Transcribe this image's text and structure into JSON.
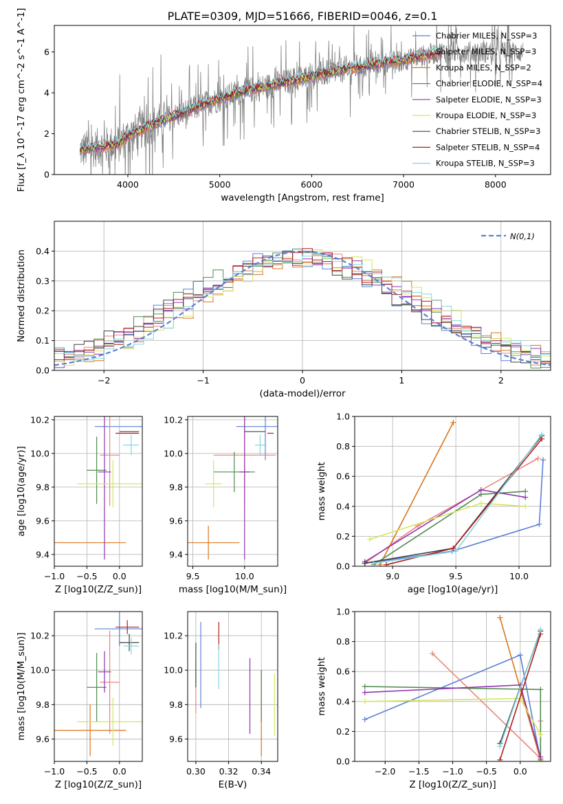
{
  "figure": {
    "title": "PLATE=0309, MJD=51666, FIBERID=0046, z=0.1"
  },
  "chart_data": [
    {
      "id": "spectrum",
      "type": "line",
      "title": "PLATE=0309, MJD=51666, FIBERID=0046, z=0.1",
      "xlabel": "wavelength [Angstrom, rest frame]",
      "ylabel": "Flux [f_λ 10^-17 erg cm^-2 s^-1 A^-1]",
      "xlim": [
        3200,
        8600
      ],
      "ylim": [
        0,
        7.3
      ],
      "xticks": [
        4000,
        5000,
        6000,
        7000,
        8000
      ],
      "yticks": [
        0,
        2,
        4,
        6
      ],
      "grid": false,
      "legend_position": "top-right",
      "legend": [
        {
          "label": "Chabrier MILES, N_SSP=3",
          "color": "#5a7fd6"
        },
        {
          "label": "Salpeter MILES, N_SSP=3",
          "color": "#e8837a"
        },
        {
          "label": "Kroupa MILES, N_SSP=2",
          "color": "#d9731c"
        },
        {
          "label": "Chabrier ELODIE, N_SSP=4",
          "color": "#4f8a4f"
        },
        {
          "label": "Salpeter ELODIE, N_SSP=3",
          "color": "#8e33b0"
        },
        {
          "label": "Kroupa ELODIE, N_SSP=3",
          "color": "#d5e65a"
        },
        {
          "label": "Chabrier STELIB, N_SSP=3",
          "color": "#404040"
        },
        {
          "label": "Salpeter STELIB, N_SSP=4",
          "color": "#b01c1c"
        },
        {
          "label": "Kroupa STELIB, N_SSP=3",
          "color": "#83d5dc"
        }
      ],
      "data_color": "#808080",
      "model_anchor_points": {
        "x": [
          3500,
          3700,
          3900,
          4000,
          4200,
          4400,
          4600,
          4800,
          5000,
          5200,
          5400,
          5600,
          5800,
          6000,
          6200,
          6400,
          6600,
          6800,
          7000,
          7200,
          7400
        ],
        "y": [
          1.2,
          1.35,
          1.5,
          1.9,
          2.3,
          2.7,
          3.0,
          3.4,
          3.7,
          4.0,
          4.2,
          4.4,
          4.6,
          4.8,
          5.0,
          5.2,
          5.3,
          5.5,
          5.6,
          5.8,
          6.0
        ]
      }
    },
    {
      "id": "residuals",
      "type": "step",
      "xlabel": "(data-model)/error",
      "ylabel": "Normed distribution",
      "xlim": [
        -2.5,
        2.5
      ],
      "ylim": [
        0,
        0.5
      ],
      "xticks": [
        -2,
        -1,
        0,
        1,
        2
      ],
      "yticks": [
        0.0,
        0.1,
        0.2,
        0.3,
        0.4
      ],
      "grid": true,
      "legend_position": "top-right",
      "legend": [
        {
          "label": "N(0,1)",
          "color": "#5a7fd6",
          "style": "dashed"
        }
      ],
      "bin_width": 0.1,
      "series_colors": [
        "#5a7fd6",
        "#e8837a",
        "#d9731c",
        "#4f8a4f",
        "#8e33b0",
        "#d5e65a",
        "#404040",
        "#b01c1c",
        "#83d5dc"
      ]
    },
    {
      "id": "age-vs-Z",
      "type": "errorbar",
      "xlabel": "Z [log10(Z/Z_sun)]",
      "ylabel": "age [log10(age/yr)]",
      "xlim": [
        -1.0,
        0.35
      ],
      "ylim": [
        9.33,
        10.22
      ],
      "xticks": [
        -1.0,
        -0.5,
        0.0
      ],
      "yticks": [
        9.4,
        9.6,
        9.8,
        10.0,
        10.2
      ],
      "grid": true,
      "points": [
        {
          "x": 0.0,
          "xerr": 0.38,
          "y": 10.16,
          "yerr": 0.0,
          "color": "#5a7fd6"
        },
        {
          "x": -0.15,
          "xerr": 0.15,
          "y": 9.99,
          "yerr": 0.3,
          "color": "#e8837a"
        },
        {
          "x": -0.45,
          "xerr": 0.55,
          "y": 9.47,
          "yerr": 0.0,
          "color": "#d9731c"
        },
        {
          "x": -0.35,
          "xerr": 0.15,
          "y": 9.9,
          "yerr": 0.2,
          "color": "#4f8a4f"
        },
        {
          "x": -0.23,
          "xerr": 0.1,
          "y": 9.89,
          "yerr": 0.52,
          "color": "#8e33b0"
        },
        {
          "x": -0.1,
          "xerr": 0.55,
          "y": 9.82,
          "yerr": 0.14,
          "color": "#d5e65a"
        },
        {
          "x": 0.15,
          "xerr": 0.15,
          "y": 10.13,
          "yerr": 0.0,
          "color": "#404040"
        },
        {
          "x": 0.12,
          "xerr": 0.18,
          "y": 10.12,
          "yerr": 0.0,
          "color": "#b01c1c"
        },
        {
          "x": 0.18,
          "xerr": 0.12,
          "y": 10.05,
          "yerr": 0.06,
          "color": "#83d5dc"
        }
      ]
    },
    {
      "id": "age-vs-mass",
      "type": "errorbar",
      "xlabel": "mass [log10(M/M_sun)]",
      "ylabel": "",
      "xlim": [
        9.45,
        10.32
      ],
      "ylim": [
        9.33,
        10.22
      ],
      "xticks": [
        9.5,
        10.0
      ],
      "yticks": [
        9.4,
        9.6,
        9.8,
        10.0,
        10.2
      ],
      "grid": true,
      "points": [
        {
          "x": 10.2,
          "xerr": 0.28,
          "y": 10.16,
          "yerr": 0.2,
          "color": "#5a7fd6"
        },
        {
          "x": 10.0,
          "xerr": 0.3,
          "y": 9.99,
          "yerr": 0.3,
          "color": "#e8837a"
        },
        {
          "x": 9.65,
          "xerr": 0.3,
          "y": 9.47,
          "yerr": 0.1,
          "color": "#d9731c"
        },
        {
          "x": 9.9,
          "xerr": 0.2,
          "y": 9.89,
          "yerr": 0.12,
          "color": "#4f8a4f"
        },
        {
          "x": 10.0,
          "xerr": 0.05,
          "y": 9.89,
          "yerr": 0.52,
          "color": "#8e33b0"
        },
        {
          "x": 9.7,
          "xerr": 0.08,
          "y": 9.82,
          "yerr": 0.14,
          "color": "#d5e65a"
        },
        {
          "x": 10.1,
          "xerr": 0.1,
          "y": 10.13,
          "yerr": 0.0,
          "color": "#404040"
        },
        {
          "x": 10.25,
          "xerr": 0.03,
          "y": 10.12,
          "yerr": 0.0,
          "color": "#b01c1c"
        },
        {
          "x": 10.15,
          "xerr": 0.05,
          "y": 10.05,
          "yerr": 0.06,
          "color": "#83d5dc"
        }
      ]
    },
    {
      "id": "mass-weight-vs-age",
      "type": "line",
      "xlabel": "age [log10(age/yr)]",
      "ylabel": "mass weight",
      "xlim": [
        8.7,
        10.25
      ],
      "ylim": [
        0,
        1.0
      ],
      "xticks": [
        9.0,
        9.5,
        10.0
      ],
      "yticks": [
        0.0,
        0.2,
        0.4,
        0.6,
        0.8,
        1.0
      ],
      "grid": true,
      "series": [
        {
          "color": "#5a7fd6",
          "x": [
            8.78,
            9.47,
            10.16,
            10.19
          ],
          "y": [
            0.02,
            0.1,
            0.28,
            0.71
          ]
        },
        {
          "color": "#e8837a",
          "x": [
            8.78,
            9.2,
            10.15
          ],
          "y": [
            0.02,
            0.27,
            0.72
          ]
        },
        {
          "color": "#d9731c",
          "x": [
            8.9,
            9.48
          ],
          "y": [
            0.01,
            0.96
          ]
        },
        {
          "color": "#4f8a4f",
          "x": [
            8.85,
            9.7,
            10.05
          ],
          "y": [
            0.01,
            0.48,
            0.5
          ]
        },
        {
          "color": "#8e33b0",
          "x": [
            8.78,
            9.7,
            10.05
          ],
          "y": [
            0.03,
            0.51,
            0.46
          ]
        },
        {
          "color": "#d5e65a",
          "x": [
            8.82,
            9.7,
            10.05
          ],
          "y": [
            0.18,
            0.42,
            0.4
          ]
        },
        {
          "color": "#404040",
          "x": [
            8.78,
            9.48,
            10.18
          ],
          "y": [
            0.02,
            0.12,
            0.87
          ]
        },
        {
          "color": "#b01c1c",
          "x": [
            8.95,
            9.48,
            10.18
          ],
          "y": [
            0.01,
            0.12,
            0.85
          ]
        },
        {
          "color": "#83d5dc",
          "x": [
            8.85,
            9.5,
            10.18
          ],
          "y": [
            0.02,
            0.1,
            0.88
          ]
        }
      ]
    },
    {
      "id": "mass-vs-Z",
      "type": "errorbar",
      "xlabel": "Z [log10(Z/Z_sun)]",
      "ylabel": "mass [log10(M/M_sun)]",
      "xlim": [
        -1.0,
        0.35
      ],
      "ylim": [
        9.47,
        10.34
      ],
      "xticks": [
        -1.0,
        -0.5,
        0.0
      ],
      "yticks": [
        9.6,
        9.8,
        10.0,
        10.2
      ],
      "grid": true,
      "points": [
        {
          "x": 0.0,
          "xerr": 0.38,
          "y": 10.24,
          "yerr": 0.1,
          "color": "#5a7fd6"
        },
        {
          "x": -0.15,
          "xerr": 0.15,
          "y": 9.93,
          "yerr": 0.3,
          "color": "#e8837a"
        },
        {
          "x": -0.45,
          "xerr": 0.55,
          "y": 9.65,
          "yerr": 0.15,
          "color": "#d9731c"
        },
        {
          "x": -0.35,
          "xerr": 0.15,
          "y": 9.9,
          "yerr": 0.2,
          "color": "#4f8a4f"
        },
        {
          "x": -0.23,
          "xerr": 0.1,
          "y": 9.99,
          "yerr": 0.12,
          "color": "#8e33b0"
        },
        {
          "x": -0.1,
          "xerr": 0.55,
          "y": 9.7,
          "yerr": 0.14,
          "color": "#d5e65a"
        },
        {
          "x": 0.15,
          "xerr": 0.15,
          "y": 10.16,
          "yerr": 0.05,
          "color": "#404040"
        },
        {
          "x": 0.12,
          "xerr": 0.18,
          "y": 10.25,
          "yerr": 0.04,
          "color": "#b01c1c"
        },
        {
          "x": 0.18,
          "xerr": 0.12,
          "y": 10.14,
          "yerr": 0.05,
          "color": "#83d5dc"
        }
      ]
    },
    {
      "id": "mass-vs-EBV",
      "type": "errorbar",
      "xlabel": "E(B-V)",
      "ylabel": "",
      "xlim": [
        0.295,
        0.35
      ],
      "ylim": [
        9.47,
        10.34
      ],
      "xticks": [
        0.3,
        0.32,
        0.34
      ],
      "yticks": [
        9.6,
        9.8,
        10.0,
        10.2
      ],
      "grid": true,
      "points": [
        {
          "x": 0.303,
          "y": 10.03,
          "yerr": 0.25,
          "color": "#5a7fd6"
        },
        {
          "x": 0.3,
          "y": 9.9,
          "yerr": 0.15,
          "color": "#e8837a"
        },
        {
          "x": 0.34,
          "y": 9.75,
          "yerr": 0.25,
          "color": "#d9731c"
        },
        {
          "x": 0.34,
          "y": 9.85,
          "yerr": 0.15,
          "color": "#4f8a4f"
        },
        {
          "x": 0.333,
          "y": 9.85,
          "yerr": 0.22,
          "color": "#8e33b0"
        },
        {
          "x": 0.348,
          "y": 9.8,
          "yerr": 0.18,
          "color": "#d5e65a"
        },
        {
          "x": 0.3,
          "y": 10.03,
          "yerr": 0.13,
          "color": "#404040"
        },
        {
          "x": 0.314,
          "y": 10.2,
          "yerr": 0.08,
          "color": "#b01c1c"
        },
        {
          "x": 0.314,
          "y": 10.02,
          "yerr": 0.13,
          "color": "#83d5dc"
        }
      ]
    },
    {
      "id": "mass-weight-vs-Z",
      "type": "line",
      "xlabel": "Z [log10(Z/Z_sun)]",
      "ylabel": "mass weight",
      "xlim": [
        -2.45,
        0.45
      ],
      "ylim": [
        0,
        1.0
      ],
      "xticks": [
        -2.0,
        -1.5,
        -1.0,
        -0.5,
        0.0
      ],
      "yticks": [
        0.0,
        0.2,
        0.4,
        0.6,
        0.8,
        1.0
      ],
      "grid": true,
      "series": [
        {
          "color": "#5a7fd6",
          "x": [
            -2.3,
            0.0,
            0.3
          ],
          "y": [
            0.28,
            0.71,
            0.01
          ]
        },
        {
          "color": "#e8837a",
          "x": [
            -1.3,
            0.3,
            0.3
          ],
          "y": [
            0.72,
            0.02,
            0.27
          ]
        },
        {
          "color": "#d9731c",
          "x": [
            -0.3,
            0.3
          ],
          "y": [
            0.96,
            0.01
          ]
        },
        {
          "color": "#4f8a4f",
          "x": [
            -2.3,
            0.3,
            0.3
          ],
          "y": [
            0.5,
            0.48,
            0.01
          ]
        },
        {
          "color": "#8e33b0",
          "x": [
            -2.3,
            0.0,
            0.3
          ],
          "y": [
            0.46,
            0.51,
            0.03
          ]
        },
        {
          "color": "#d5e65a",
          "x": [
            -2.3,
            0.0,
            0.3
          ],
          "y": [
            0.4,
            0.42,
            0.18
          ]
        },
        {
          "color": "#404040",
          "x": [
            -0.3,
            0.3
          ],
          "y": [
            0.12,
            0.87
          ]
        },
        {
          "color": "#b01c1c",
          "x": [
            -0.3,
            0.3
          ],
          "y": [
            0.01,
            0.85
          ]
        },
        {
          "color": "#83d5dc",
          "x": [
            -0.3,
            0.3
          ],
          "y": [
            0.1,
            0.88
          ]
        }
      ]
    }
  ]
}
